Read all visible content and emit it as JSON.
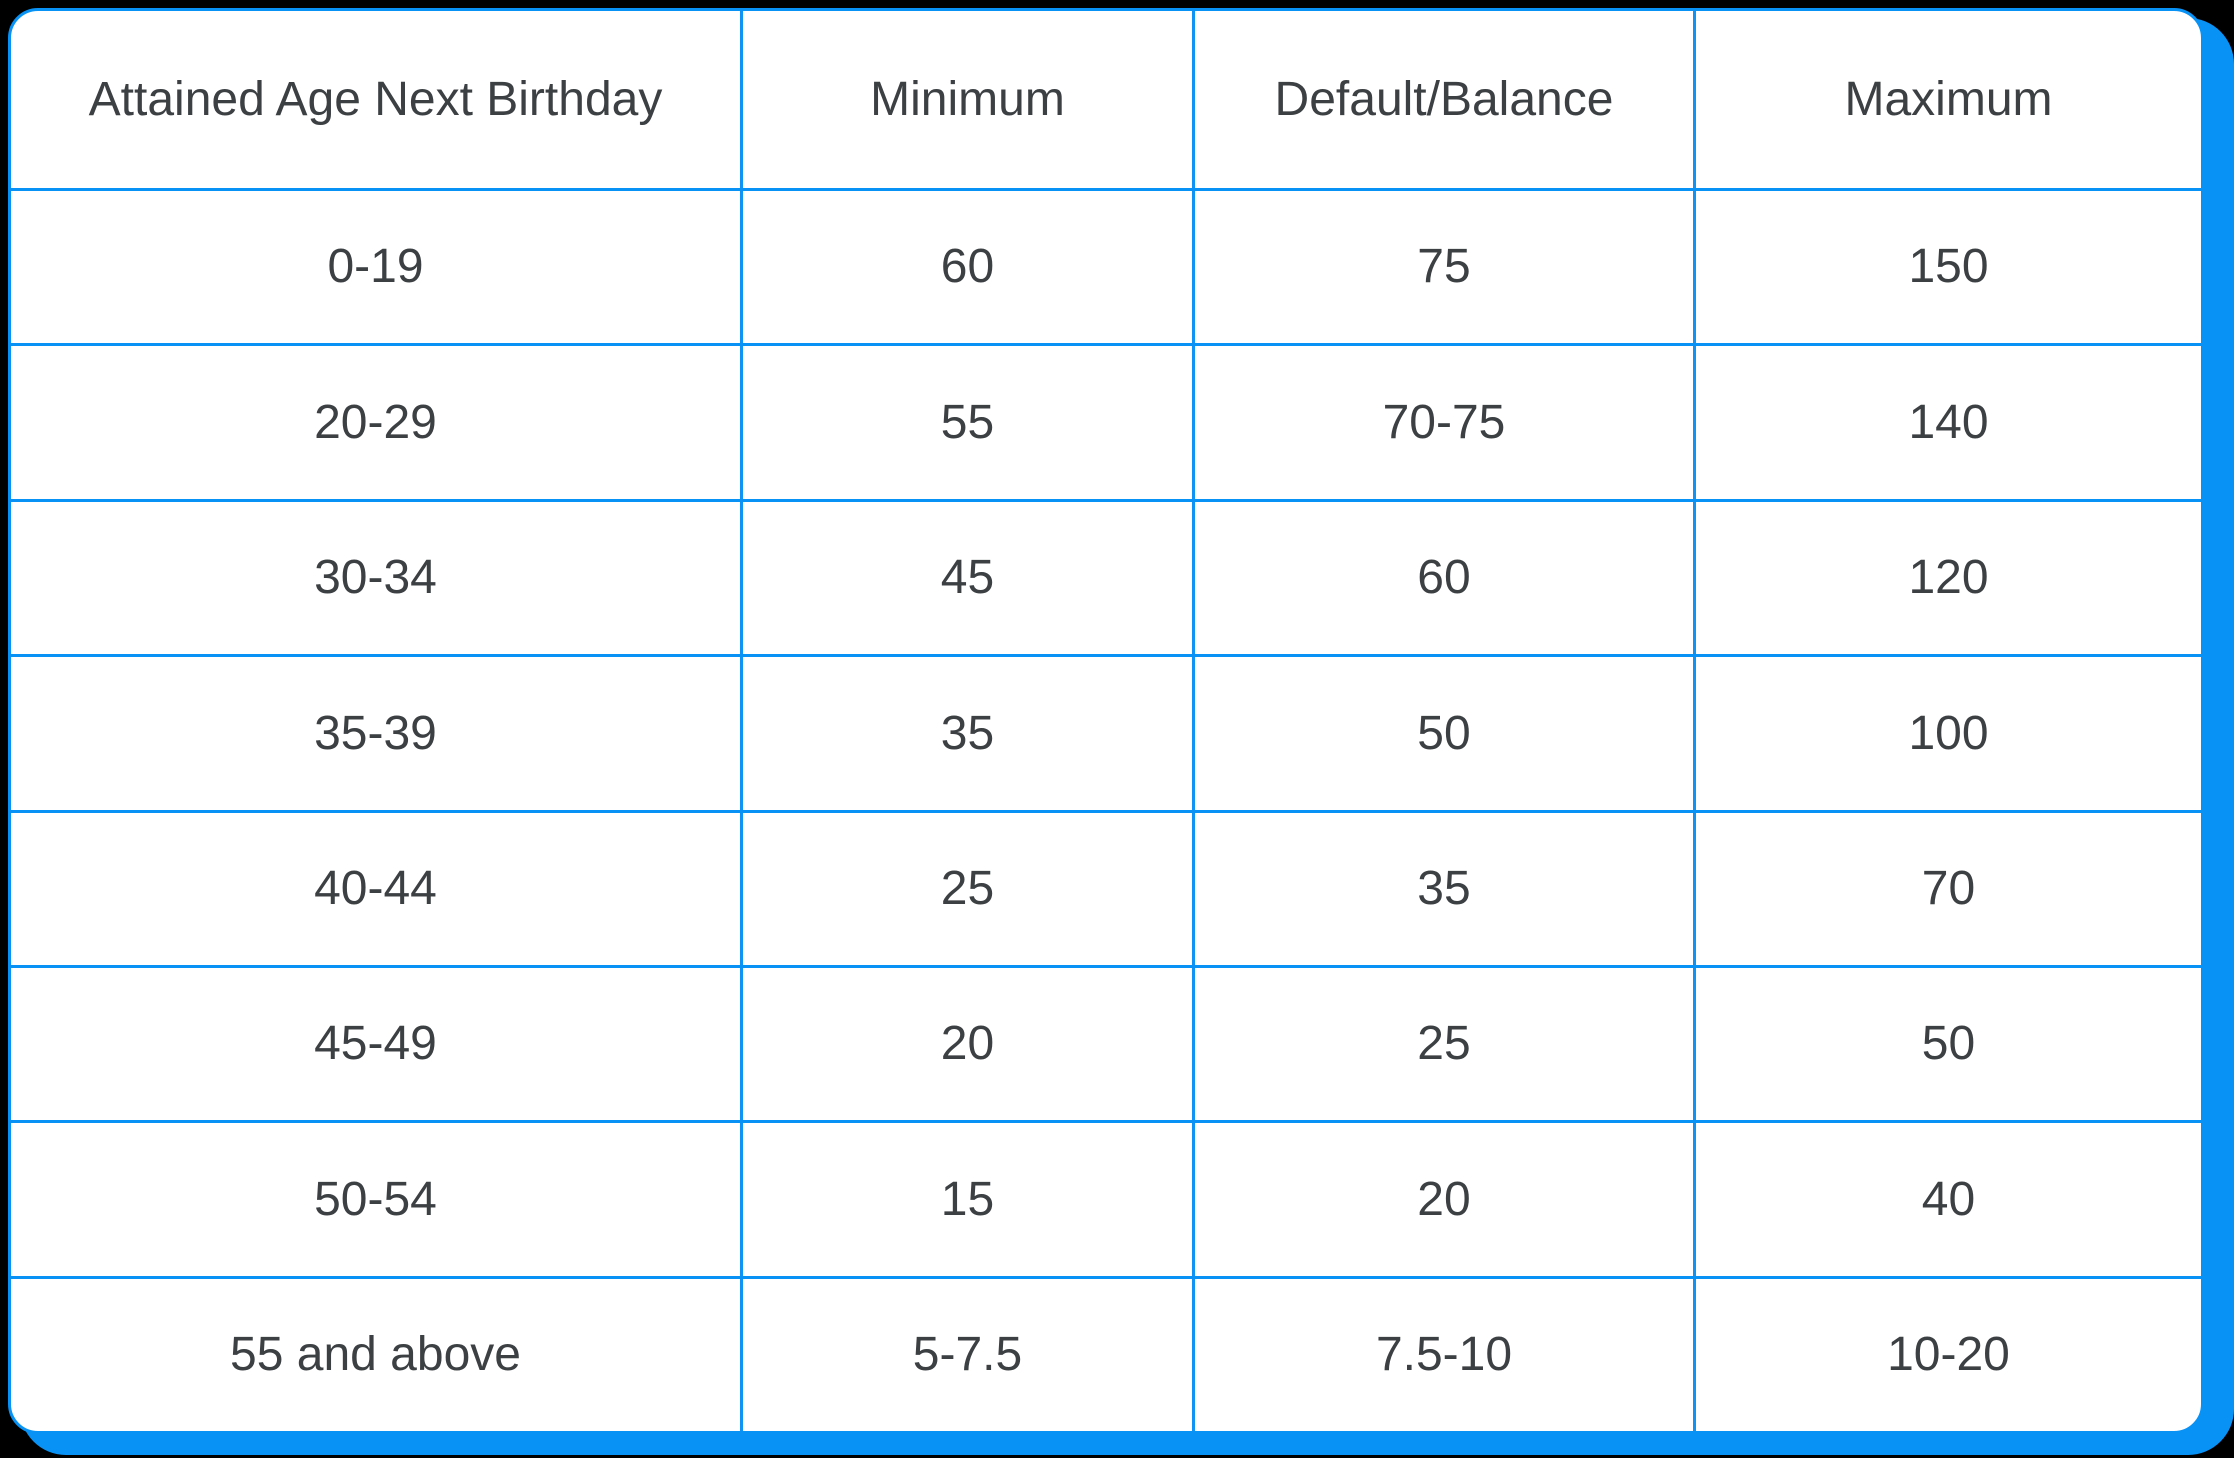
{
  "colors": {
    "accent": "#0992f5",
    "grid_line": "#0f94f3",
    "text": "#3c4043",
    "card_background": "#ffffff",
    "page_background": "#000000"
  },
  "table": {
    "headers": [
      "Attained Age Next Birthday",
      "Minimum",
      "Default/Balance",
      "Maximum"
    ],
    "rows": [
      [
        "0-19",
        "60",
        "75",
        "150"
      ],
      [
        "20-29",
        "55",
        "70-75",
        "140"
      ],
      [
        "30-34",
        "45",
        "60",
        "120"
      ],
      [
        "35-39",
        "35",
        "50",
        "100"
      ],
      [
        "40-44",
        "25",
        "35",
        "70"
      ],
      [
        "45-49",
        "20",
        "25",
        "50"
      ],
      [
        "50-54",
        "15",
        "20",
        "40"
      ],
      [
        "55 and above",
        "5-7.5",
        "7.5-10",
        "10-20"
      ]
    ]
  },
  "chart_data": {
    "type": "table",
    "title": "",
    "columns": [
      "Attained Age Next Birthday",
      "Minimum",
      "Default/Balance",
      "Maximum"
    ],
    "rows": [
      [
        "0-19",
        "60",
        "75",
        "150"
      ],
      [
        "20-29",
        "55",
        "70-75",
        "140"
      ],
      [
        "30-34",
        "45",
        "60",
        "120"
      ],
      [
        "35-39",
        "35",
        "50",
        "100"
      ],
      [
        "40-44",
        "25",
        "35",
        "70"
      ],
      [
        "45-49",
        "20",
        "25",
        "50"
      ],
      [
        "50-54",
        "15",
        "20",
        "40"
      ],
      [
        "55 and above",
        "5-7.5",
        "7.5-10",
        "10-20"
      ]
    ]
  }
}
